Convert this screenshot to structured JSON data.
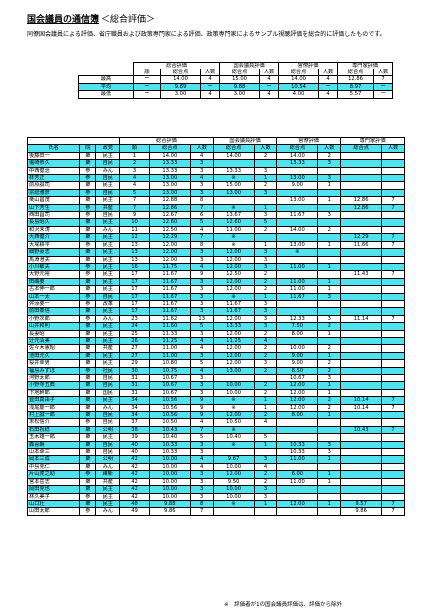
{
  "title": {
    "main": "国会議員の通信簿",
    "sub": "＜総合評価＞"
  },
  "intro": "同僚国会議員による評価、省庁職員および政策専門家による評価、政策専門家によるサンプル視聴評価を総合的に評価したものです。",
  "summary": {
    "groups": [
      "総合評価",
      "国会議員評価",
      "官僚評価",
      "専門家評価"
    ],
    "subheaders": [
      "順",
      "総合点",
      "人数",
      "総合点",
      "人数",
      "総合点",
      "人数",
      "総合点",
      "人数"
    ],
    "rows": [
      {
        "label": "最高",
        "rank": "ー",
        "cells": [
          "14.00",
          "4",
          "15.00",
          "4",
          "14.00",
          "4",
          "12.86",
          "7"
        ]
      },
      {
        "label": "平均",
        "rank": "ー",
        "cells": [
          "9.89",
          "ー",
          "9.88",
          "ー",
          "10.54",
          "ー",
          "8.97",
          "ー"
        ]
      },
      {
        "label": "最低",
        "rank": "ー",
        "cells": [
          "3.00",
          "4",
          "3.00",
          "4",
          "4.00",
          "4",
          "5.57",
          "ー"
        ]
      }
    ]
  },
  "detail": {
    "group_headers": [
      "総合評価",
      "国会議員評価",
      "官僚評価",
      "専門家評価"
    ],
    "subheaders": [
      "氏名",
      "院",
      "政党",
      "順",
      "総合点",
      "人数",
      "総合点",
      "人数",
      "総合点",
      "人数",
      "総合点",
      "人数"
    ],
    "rows": [
      [
        "後藤田一",
        "衆",
        "民主",
        "1",
        "14.00",
        "4",
        "14.00",
        "2",
        "14.00",
        "2",
        "",
        ""
      ],
      [
        "塩崎恭久",
        "衆",
        "自民",
        "2",
        "13.33",
        "3",
        "",
        "",
        "13.33",
        "3",
        "",
        ""
      ],
      [
        "中西健治",
        "参",
        "みん",
        "3",
        "13.33",
        "3",
        "13.33",
        "3",
        "",
        "",
        "",
        ""
      ],
      [
        "林芳正",
        "参",
        "自民",
        "4",
        "13.00",
        "4",
        "※",
        "1",
        "13.00",
        "3",
        "",
        ""
      ],
      [
        "前原誠司",
        "衆",
        "民主",
        "4",
        "13.00",
        "3",
        "15.00",
        "2",
        "9.00",
        "1",
        "",
        ""
      ],
      [
        "宗総雅彦",
        "参",
        "自民",
        "5",
        "13.00",
        "3",
        "13.00",
        "3",
        "",
        "",
        "",
        ""
      ],
      [
        "栗山昌茂",
        "衆",
        "民主",
        "7",
        "12.88",
        "8",
        "",
        "",
        "13.00",
        "1",
        "12.86",
        "7"
      ],
      [
        "山下芳生",
        "参",
        "共産",
        "7",
        "12.86",
        "7",
        "※",
        "1",
        "",
        "",
        "12.86",
        "7"
      ],
      [
        "西田昌司",
        "参",
        "自民",
        "9",
        "12.67",
        "6",
        "13.67",
        "3",
        "11.67",
        "3",
        "",
        ""
      ],
      [
        "長島昭久",
        "衆",
        "民主",
        "10",
        "12.60",
        "5",
        "12.60",
        "5",
        "",
        "",
        "",
        ""
      ],
      [
        "和沢未涛",
        "衆",
        "みん",
        "11",
        "12.50",
        "4",
        "11.00",
        "2",
        "14.00",
        "2",
        "",
        ""
      ],
      [
        "大西健介",
        "衆",
        "民主",
        "12",
        "12.29",
        "7",
        "※",
        "",
        "",
        "",
        "12.29",
        "7"
      ],
      [
        "大塚耕平",
        "参",
        "民主",
        "13",
        "12.00",
        "8",
        "※",
        "1",
        "13.00",
        "1",
        "11.86",
        "7"
      ],
      [
        "細野豪志",
        "衆",
        "民主",
        "13",
        "12.00",
        "3",
        "12.00",
        "3",
        "※",
        "",
        "",
        ""
      ],
      [
        "馬淵澄夫",
        "衆",
        "民主",
        "13",
        "12.00",
        "3",
        "12.00",
        "3",
        "",
        "",
        "",
        ""
      ],
      [
        "小川敏夫",
        "参",
        "民主",
        "16",
        "11.75",
        "4",
        "12.00",
        "3",
        "11.00",
        "1",
        "",
        ""
      ],
      [
        "大野元裕",
        "参",
        "民主",
        "17",
        "11.67",
        "9",
        "12.50",
        "2",
        "",
        "",
        "11.43",
        "7"
      ],
      [
        "田嶋要",
        "衆",
        "民主",
        "17",
        "11.67",
        "3",
        "12.00",
        "2",
        "11.00",
        "1",
        "",
        ""
      ],
      [
        "古本伸一郎",
        "衆",
        "民主",
        "17",
        "11.67",
        "3",
        "12.00",
        "2",
        "11.00",
        "1",
        "",
        ""
      ],
      [
        "山本一太",
        "参",
        "自民",
        "17",
        "11.67",
        "3",
        "※",
        "1",
        "11.67",
        "3",
        "",
        ""
      ],
      [
        "舛添要一",
        "参",
        "改革",
        "17",
        "11.67",
        "3",
        "11.67",
        "3",
        "",
        "",
        "",
        ""
      ],
      [
        "前田泰信",
        "衆",
        "民主",
        "17",
        "11.67",
        "3",
        "11.67",
        "3",
        "",
        "",
        "",
        ""
      ],
      [
        "小野次郎",
        "参",
        "みん",
        "23",
        "11.62",
        "13",
        "12.00",
        "3",
        "12.33",
        "3",
        "11.14",
        "7"
      ],
      [
        "山井和則",
        "衆",
        "民主",
        "24",
        "11.60",
        "5",
        "13.33",
        "3",
        "7.50",
        "2",
        "",
        ""
      ],
      [
        "長妻昭",
        "衆",
        "民主",
        "25",
        "11.33",
        "3",
        "12.00",
        "2",
        "8.00",
        "1",
        "",
        ""
      ],
      [
        "辻元清美",
        "衆",
        "民主",
        "26",
        "11.25",
        "4",
        "11.25",
        "4",
        "",
        "",
        "",
        ""
      ],
      [
        "佐々木憲昭",
        "衆",
        "共産",
        "27",
        "11.00",
        "4",
        "12.00",
        "2",
        "10.00",
        "2",
        "",
        ""
      ],
      [
        "池田元久",
        "衆",
        "民主",
        "27",
        "11.00",
        "3",
        "12.00",
        "2",
        "9.00",
        "1",
        "",
        ""
      ],
      [
        "桜井幸男",
        "衆",
        "民主",
        "29",
        "10.80",
        "5",
        "12.00",
        "3",
        "9.00",
        "2",
        "",
        ""
      ],
      [
        "福島みずほ",
        "参",
        "社民",
        "30",
        "10.75",
        "4",
        "13.00",
        "2",
        "8.50",
        "2",
        "",
        ""
      ],
      [
        "河野太郎",
        "衆",
        "自民",
        "31",
        "10.67",
        "3",
        "",
        "",
        "10.67",
        "3",
        "",
        ""
      ],
      [
        "小野寺五典",
        "衆",
        "自民",
        "31",
        "10.67",
        "3",
        "10.00",
        "2",
        "12.00",
        "1",
        "",
        ""
      ],
      [
        "下地幹郎",
        "衆",
        "国民",
        "31",
        "10.67",
        "3",
        "10.00",
        "2",
        "12.00",
        "1",
        "",
        ""
      ],
      [
        "豊田真由子",
        "衆",
        "民主",
        "34",
        "10.56",
        "9",
        "※",
        "1",
        "12.00",
        "2",
        "10.14",
        "7"
      ],
      [
        "浅尾慶一郎",
        "衆",
        "みん",
        "34",
        "10.56",
        "9",
        "※",
        "1",
        "12.00",
        "2",
        "10.14",
        "7"
      ],
      [
        "村上誠一郎",
        "衆",
        "自民",
        "34",
        "10.56",
        "9",
        "12.00",
        "2",
        "8.00",
        "1",
        "",
        ""
      ],
      [
        "末松信介",
        "参",
        "自民",
        "37",
        "10.50",
        "4",
        "10.50",
        "4",
        "",
        "",
        "",
        ""
      ],
      [
        "石田祝稔",
        "衆",
        "公明",
        "38",
        "10.43",
        "7",
        "※",
        "",
        "",
        "",
        "10.43",
        "7"
      ],
      [
        "玉木雄一郎",
        "衆",
        "民主",
        "39",
        "10.40",
        "5",
        "10.40",
        "5",
        "",
        "",
        "",
        ""
      ],
      [
        "森喜朗",
        "衆",
        "自民",
        "40",
        "10.33",
        "3",
        "※",
        "1",
        "10.33",
        "3",
        "",
        ""
      ],
      [
        "山本幸三",
        "衆",
        "自民",
        "40",
        "10.33",
        "3",
        "",
        "",
        "10.33",
        "3",
        "",
        ""
      ],
      [
        "岡本三成",
        "衆",
        "公明",
        "42",
        "10.00",
        "4",
        "9.67",
        "3",
        "11.00",
        "1",
        "",
        ""
      ],
      [
        "中島克仁",
        "衆",
        "みん",
        "42",
        "10.00",
        "4",
        "10.00",
        "4",
        "",
        "",
        "",
        ""
      ],
      [
        "片山虎之助",
        "参",
        "維新",
        "42",
        "10.00",
        "3",
        "12.00",
        "2",
        "6.00",
        "1",
        "",
        ""
      ],
      [
        "宮本岳志",
        "衆",
        "共産",
        "42",
        "10.00",
        "3",
        "9.50",
        "2",
        "11.00",
        "1",
        "",
        ""
      ],
      [
        "岡田克也",
        "衆",
        "民主",
        "42",
        "10.00",
        "3",
        "10.00",
        "3",
        "",
        "",
        "",
        ""
      ],
      [
        "林久美子",
        "参",
        "民主",
        "42",
        "10.00",
        "3",
        "10.00",
        "3",
        "",
        "",
        "",
        ""
      ],
      [
        "山口壮",
        "衆",
        "民主",
        "48",
        "9.88",
        "8",
        "※",
        "1",
        "12.00",
        "1",
        "9.57",
        "7"
      ],
      [
        "山田太郎",
        "参",
        "みん",
        "49",
        "9.86",
        "7",
        "",
        "",
        "",
        "",
        "9.86",
        "7"
      ]
    ]
  },
  "footnote": "※　評価者が1の国会議員評価は、評価から除外"
}
